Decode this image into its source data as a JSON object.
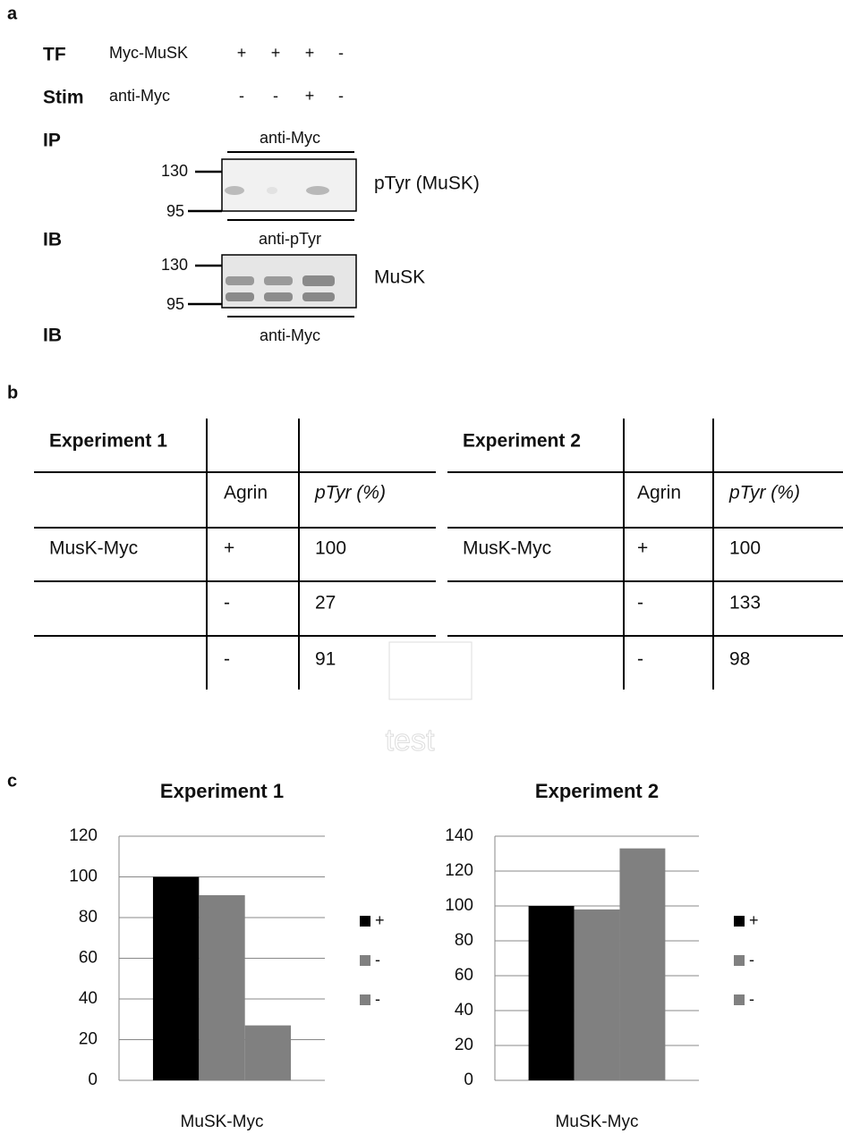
{
  "panels": [
    "a",
    "b",
    "c"
  ],
  "panel_a": {
    "rows": [
      {
        "label": "TF",
        "construct": "Myc-MuSK",
        "lanes": [
          "+",
          "+",
          "+",
          "-"
        ]
      },
      {
        "label": "Stim",
        "construct": "anti-Myc",
        "lanes": [
          "-",
          "-",
          "+",
          "-"
        ]
      }
    ],
    "ip_label": "IP",
    "ip_antibody": "anti-Myc",
    "blots": [
      {
        "markers": [
          130,
          95
        ],
        "target": "pTyr (MuSK)",
        "ib_label": "IB",
        "antibody": "anti-pTyr"
      },
      {
        "markers": [
          130,
          95
        ],
        "target": "MuSK",
        "ib_label": "IB",
        "antibody": "anti-Myc"
      }
    ]
  },
  "table": {
    "tables": [
      {
        "title": "Experiment 1",
        "columns": [
          "Agrin",
          "pTyr (%)"
        ],
        "rows": [
          {
            "label": "MusK-Myc",
            "agrin": "+",
            "ptyr": 100
          },
          {
            "agrin": "-",
            "ptyr": 27
          },
          {
            "agrin": "-",
            "ptyr": 91
          }
        ]
      },
      {
        "title": "Experiment 2",
        "columns": [
          "Agrin",
          "pTyr (%)"
        ],
        "rows": [
          {
            "label": "MusK-Myc",
            "agrin": "+",
            "ptyr": 100
          },
          {
            "agrin": "-",
            "ptyr": 133
          },
          {
            "agrin": "-",
            "ptyr": 98
          }
        ]
      }
    ]
  },
  "watermark": "test",
  "chart_data": [
    {
      "type": "bar",
      "title": "Experiment 1",
      "categories": [
        "MuSK-Myc"
      ],
      "series": [
        {
          "name": "+",
          "color": "#000000",
          "values": [
            100
          ]
        },
        {
          "name": "-",
          "color": "#808080",
          "values": [
            91
          ]
        },
        {
          "name": "-",
          "color": "#808080",
          "values": [
            27
          ]
        }
      ],
      "ylim": [
        0,
        120
      ],
      "yticks": [
        0,
        20,
        40,
        60,
        80,
        100,
        120
      ],
      "grid": true,
      "legend": "right"
    },
    {
      "type": "bar",
      "title": "Experiment 2",
      "categories": [
        "MuSK-Myc"
      ],
      "series": [
        {
          "name": "+",
          "color": "#000000",
          "values": [
            100
          ]
        },
        {
          "name": "-",
          "color": "#808080",
          "values": [
            98
          ]
        },
        {
          "name": "-",
          "color": "#808080",
          "values": [
            133
          ]
        }
      ],
      "ylim": [
        0,
        140
      ],
      "yticks": [
        0,
        20,
        40,
        60,
        80,
        100,
        120,
        140
      ],
      "grid": true,
      "legend": "right"
    }
  ]
}
